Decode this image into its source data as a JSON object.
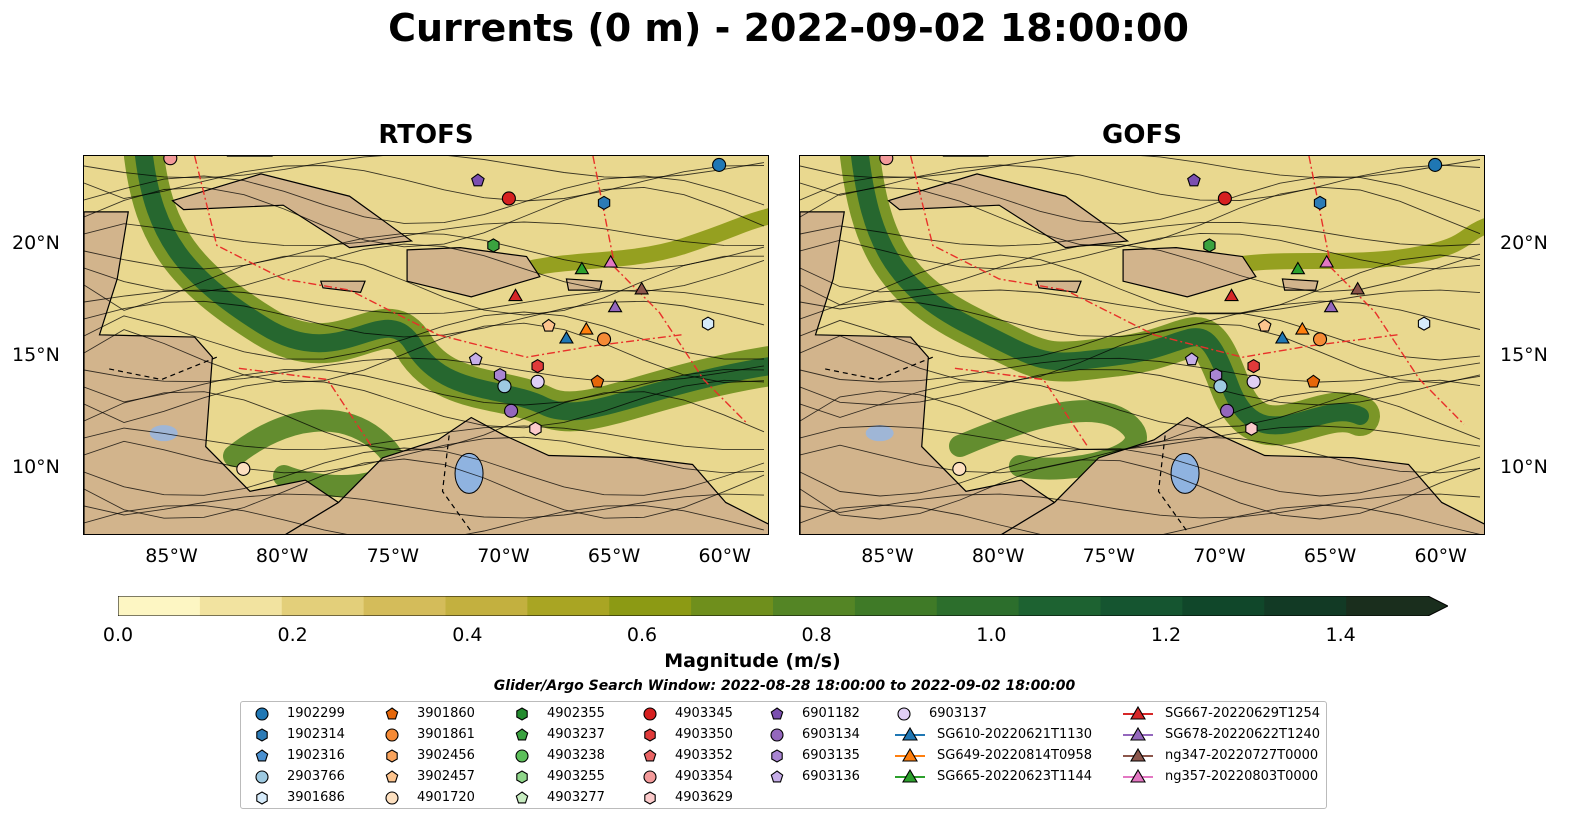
{
  "title": "Currents (0 m) - 2022-09-02 18:00:00",
  "panels": [
    {
      "title": "RTOFS"
    },
    {
      "title": "GOFS"
    }
  ],
  "axes": {
    "lon_ticks": [
      "85°W",
      "80°W",
      "75°W",
      "70°W",
      "65°W",
      "60°W"
    ],
    "lat_ticks": [
      "20°N",
      "15°N",
      "10°N"
    ]
  },
  "colorbar": {
    "label": "Magnitude (m/s)",
    "ticks": [
      "0.0",
      "0.2",
      "0.4",
      "0.6",
      "0.8",
      "1.0",
      "1.2",
      "1.4"
    ],
    "range": [
      0,
      1.5
    ],
    "extend": "max",
    "colors": [
      "#fdf6c3",
      "#f2e3a0",
      "#e3cf7a",
      "#d4bc5a",
      "#c3b03f",
      "#a9a523",
      "#8c9a14",
      "#6f8f1c",
      "#548525",
      "#3f7a27",
      "#2c6e2c",
      "#1d6231",
      "#155530",
      "#10472a",
      "#123a25",
      "#1a2e1d"
    ]
  },
  "search_window": "Glider/Argo Search Window: 2022-08-28 18:00:00 to 2022-09-02 18:00:00",
  "legend": {
    "columns": [
      [
        {
          "label": "1902299",
          "marker": "circle",
          "color": "#1f77b4"
        },
        {
          "label": "1902314",
          "marker": "hexagon",
          "color": "#2c7bb6"
        },
        {
          "label": "1902316",
          "marker": "pentagon",
          "color": "#4a90d0"
        },
        {
          "label": "2903766",
          "marker": "circle",
          "color": "#9ecae1"
        },
        {
          "label": "3901686",
          "marker": "hexagon",
          "color": "#d6ebfa"
        }
      ],
      [
        {
          "label": "3901860",
          "marker": "pentagon",
          "color": "#e6670a"
        },
        {
          "label": "3901861",
          "marker": "circle",
          "color": "#f58a35"
        },
        {
          "label": "3902456",
          "marker": "hexagon",
          "color": "#f9a35c"
        },
        {
          "label": "3902457",
          "marker": "pentagon",
          "color": "#fdc48e"
        },
        {
          "label": "4901720",
          "marker": "circle",
          "color": "#fde0c0"
        }
      ],
      [
        {
          "label": "4902355",
          "marker": "hexagon",
          "color": "#238b2e"
        },
        {
          "label": "4903237",
          "marker": "pentagon",
          "color": "#3aa23f"
        },
        {
          "label": "4903238",
          "marker": "circle",
          "color": "#5cbf5a"
        },
        {
          "label": "4903255",
          "marker": "hexagon",
          "color": "#8fd68a"
        },
        {
          "label": "4903277",
          "marker": "pentagon",
          "color": "#c7ecc0"
        }
      ],
      [
        {
          "label": "4903345",
          "marker": "circle",
          "color": "#d62020"
        },
        {
          "label": "4903350",
          "marker": "hexagon",
          "color": "#e03a3a"
        },
        {
          "label": "4903352",
          "marker": "pentagon",
          "color": "#ea6464"
        },
        {
          "label": "4903354",
          "marker": "circle",
          "color": "#f39a9a"
        },
        {
          "label": "4903629",
          "marker": "hexagon",
          "color": "#fbcaca"
        }
      ],
      [
        {
          "label": "6901182",
          "marker": "pentagon",
          "color": "#7b4fb0"
        },
        {
          "label": "6903134",
          "marker": "circle",
          "color": "#9467bd"
        },
        {
          "label": "6903135",
          "marker": "hexagon",
          "color": "#a985d2"
        },
        {
          "label": "6903136",
          "marker": "pentagon",
          "color": "#c6aee8"
        }
      ],
      [
        {
          "label": "6903137",
          "marker": "circle",
          "color": "#e0cff5"
        },
        {
          "label": "SG610-20220621T1130",
          "marker": "triangle-line",
          "color": "#1f77b4"
        },
        {
          "label": "SG649-20220814T0958",
          "marker": "triangle-line",
          "color": "#ff7f0e"
        },
        {
          "label": "SG665-20220623T1144",
          "marker": "triangle-line",
          "color": "#2ca02c"
        }
      ],
      [
        {
          "label": "SG667-20220629T1254",
          "marker": "triangle-line",
          "color": "#d62728"
        },
        {
          "label": "SG678-20220622T1240",
          "marker": "triangle-line",
          "color": "#9467bd"
        },
        {
          "label": "ng347-20220727T0000",
          "marker": "triangle-line",
          "color": "#8c564b"
        },
        {
          "label": "ng357-20220803T0000",
          "marker": "triangle-line",
          "color": "#e377c2"
        }
      ]
    ]
  },
  "map_colors": {
    "land": "#d2b48c",
    "lake": "#8fb3e0",
    "front": "#e8302a",
    "border": "#000000"
  }
}
